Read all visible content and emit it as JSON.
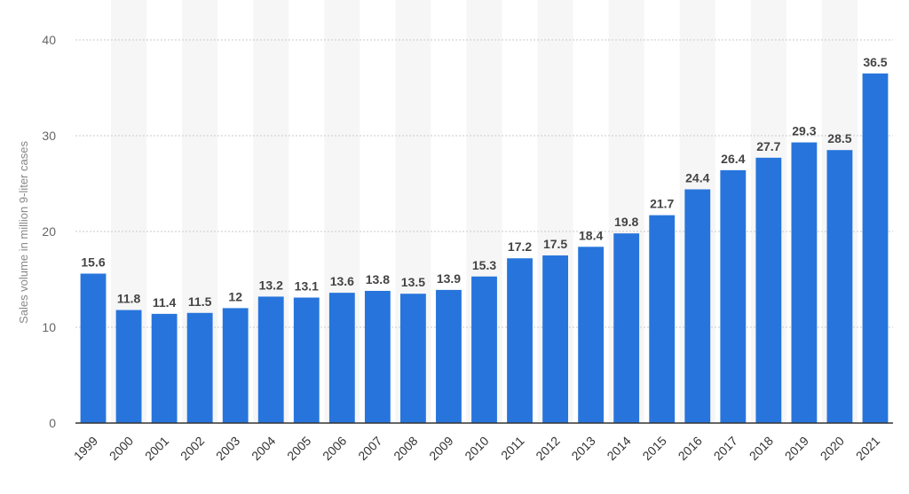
{
  "chart_data": {
    "type": "bar",
    "categories": [
      "1999",
      "2000",
      "2001",
      "2002",
      "2003",
      "2004",
      "2005",
      "2006",
      "2007",
      "2008",
      "2009",
      "2010",
      "2011",
      "2012",
      "2013",
      "2014",
      "2015",
      "2016",
      "2017",
      "2018",
      "2019",
      "2020",
      "2021"
    ],
    "series": [
      {
        "values": [
          15.6,
          11.8,
          11.4,
          11.5,
          12,
          13.2,
          13.1,
          13.6,
          13.8,
          13.5,
          13.9,
          15.3,
          17.2,
          17.5,
          18.4,
          19.8,
          21.7,
          24.4,
          26.4,
          27.7,
          29.3,
          28.5,
          36.5
        ],
        "labels": [
          "15.6",
          "11.8",
          "11.4",
          "11.5",
          "12",
          "13.2",
          "13.1",
          "13.6",
          "13.8",
          "13.5",
          "13.9",
          "15.3",
          "17.2",
          "17.5",
          "18.4",
          "19.8",
          "21.7",
          "24.4",
          "26.4",
          "27.7",
          "29.3",
          "28.5",
          "36.5"
        ]
      }
    ],
    "xlabel": "",
    "ylabel": "Sales volume in million 9-liter cases",
    "ylim": [
      0,
      40
    ],
    "yticks": [
      "0",
      "10",
      "20",
      "30",
      "40"
    ],
    "grid": true,
    "colors": {
      "bar": "#2775dc",
      "grid": "#c9c9c9",
      "band": "#f6f6f6"
    }
  }
}
